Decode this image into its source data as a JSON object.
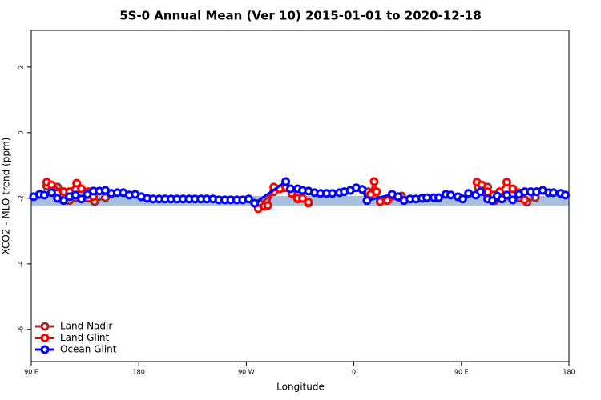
{
  "chart_data": {
    "type": "line",
    "title": "5S-0 Annual Mean (Ver 10)   2015-01-01 to 2020-12-18",
    "x_label": "Longitude",
    "y_label": "XCO2 - MLO trend (ppm)",
    "xlim": [
      90,
      540
    ],
    "ylim": [
      -6.98,
      3.12
    ],
    "xticks": [
      {
        "value": 90,
        "label": "90 E"
      },
      180,
      {
        "value": 270,
        "label": "90 W"
      },
      {
        "value": 360,
        "label": "0"
      },
      {
        "value": 450,
        "label": "90 E"
      },
      {
        "value": 540,
        "label": "180"
      }
    ],
    "yticks": [
      2,
      0,
      -2,
      -4,
      -6
    ],
    "band": {
      "ymin": -2.22,
      "ymax": -1.93,
      "color": "#a9bfdf"
    },
    "legend": "bottom-left",
    "series": [
      {
        "name": "Land Nadir",
        "color": "#a52a2a",
        "x": [
          103,
          112,
          117,
          122,
          143,
          152,
          null,
          282,
          293,
          308,
          313,
          322,
          null,
          372,
          376,
          383,
          400,
          null,
          464,
          472,
          478,
          482,
          505,
          512
        ],
        "values": [
          -1.63,
          -1.66,
          -1.8,
          -2.07,
          -2.1,
          -1.98,
          null,
          -2.17,
          -1.8,
          -1.76,
          -2.02,
          -2.15,
          null,
          -1.8,
          -1.8,
          -2.07,
          -1.93,
          null,
          -1.66,
          -1.66,
          -2.07,
          -1.98,
          -2.12,
          -1.98
        ]
      },
      {
        "name": "Land Glint",
        "color": "#ff0000",
        "x": [
          103,
          107,
          117,
          122,
          128,
          132,
          138,
          142,
          null,
          280,
          285,
          288,
          293,
          298,
          303,
          308,
          313,
          317,
          322,
          null,
          374,
          377,
          379,
          382,
          388,
          398,
          null,
          463,
          467,
          472,
          477,
          482,
          488,
          493,
          498,
          503
        ],
        "values": [
          -1.51,
          -1.59,
          -1.8,
          -1.8,
          -1.54,
          -1.71,
          -1.8,
          -1.95,
          null,
          -2.32,
          -2.24,
          -2.22,
          -1.66,
          -1.71,
          -1.66,
          -1.85,
          -2.0,
          -2.0,
          -2.12,
          null,
          -1.88,
          -1.49,
          -1.8,
          -2.1,
          -2.07,
          -1.98,
          null,
          -1.51,
          -1.59,
          -1.8,
          -1.9,
          -1.8,
          -1.51,
          -1.71,
          -1.83,
          -2.05
        ]
      },
      {
        "name": "Ocean Glint",
        "color": "#0000ff",
        "x": [
          92,
          97,
          101,
          107,
          112,
          117,
          122,
          127,
          132,
          137,
          142,
          147,
          152,
          157,
          162,
          167,
          172,
          177,
          182,
          187,
          192,
          197,
          202,
          207,
          212,
          217,
          222,
          227,
          232,
          237,
          242,
          247,
          252,
          257,
          262,
          267,
          272,
          277,
          303,
          307,
          313,
          317,
          322,
          327,
          332,
          337,
          342,
          348,
          352,
          357,
          362,
          367,
          371,
          392,
          397,
          402,
          407,
          412,
          417,
          421,
          427,
          431,
          437,
          441,
          447,
          451,
          456,
          462,
          466,
          472,
          476,
          480,
          484,
          488,
          493,
          498,
          503,
          508,
          513,
          518,
          523,
          527,
          533,
          537
        ],
        "values": [
          -1.95,
          -1.88,
          -1.9,
          -1.83,
          -2.0,
          -2.07,
          -1.95,
          -1.9,
          -2.02,
          -1.88,
          -1.78,
          -1.78,
          -1.76,
          -1.85,
          -1.83,
          -1.83,
          -1.9,
          -1.88,
          -1.95,
          -2.0,
          -2.02,
          -2.02,
          -2.02,
          -2.02,
          -2.02,
          -2.02,
          -2.02,
          -2.02,
          -2.02,
          -2.02,
          -2.02,
          -2.05,
          -2.05,
          -2.05,
          -2.05,
          -2.05,
          -2.02,
          -2.15,
          -1.49,
          -1.71,
          -1.71,
          -1.76,
          -1.78,
          -1.83,
          -1.85,
          -1.85,
          -1.85,
          -1.83,
          -1.8,
          -1.76,
          -1.68,
          -1.73,
          -2.07,
          -1.88,
          -1.95,
          -2.07,
          -2.02,
          -2.02,
          -2.0,
          -1.98,
          -1.98,
          -1.98,
          -1.88,
          -1.9,
          -1.95,
          -2.02,
          -1.85,
          -1.9,
          -1.8,
          -2.02,
          -2.07,
          -1.93,
          -2.02,
          -1.9,
          -2.05,
          -1.88,
          -1.8,
          -1.8,
          -1.8,
          -1.76,
          -1.83,
          -1.83,
          -1.85,
          -1.9
        ]
      }
    ]
  }
}
